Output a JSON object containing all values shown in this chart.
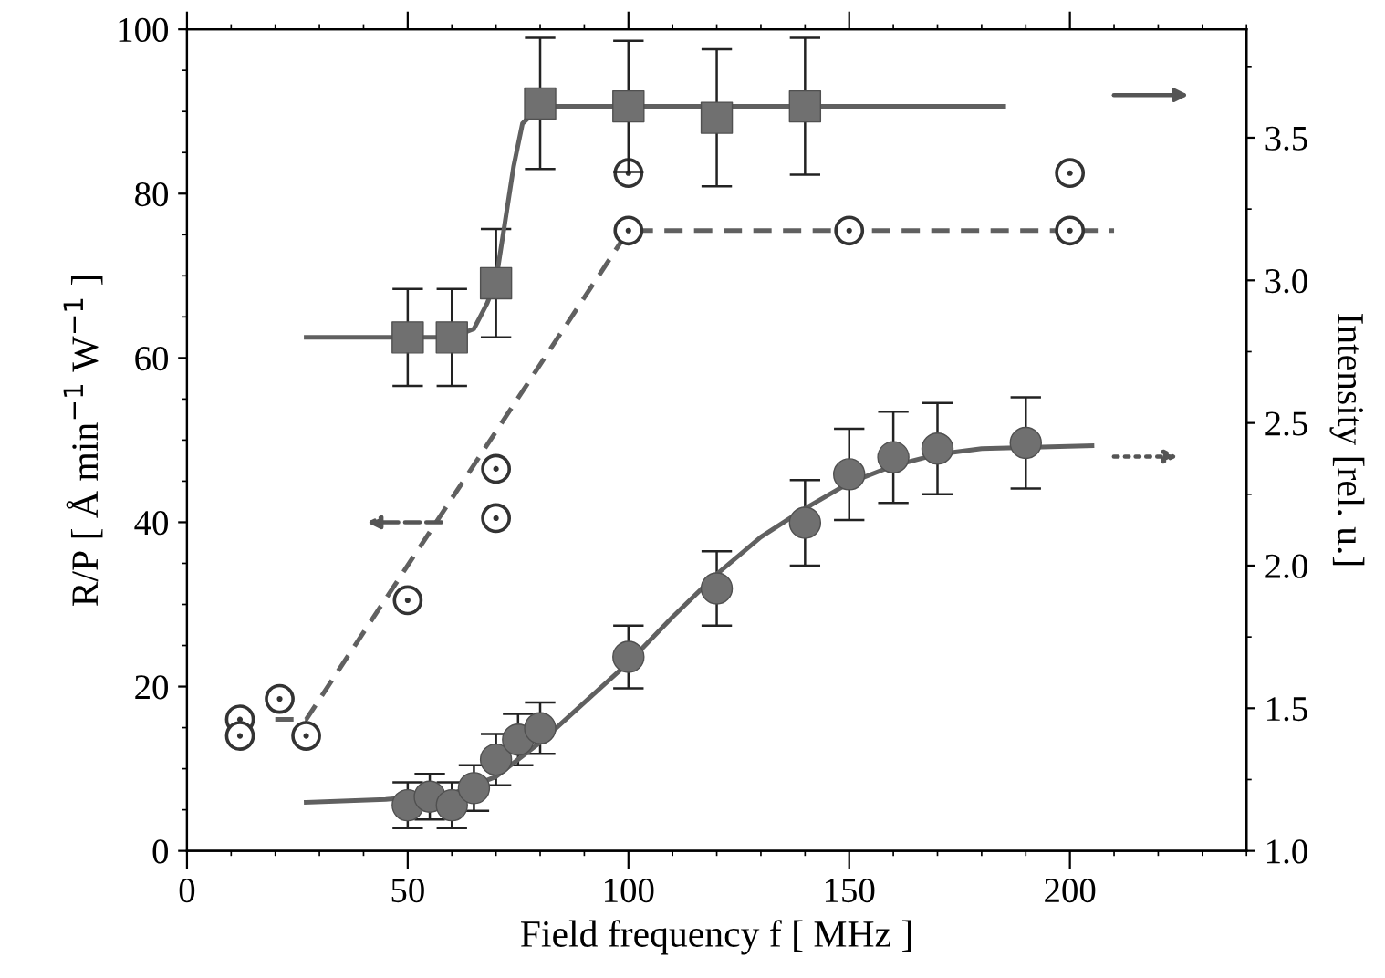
{
  "chart_data": {
    "type": "scatter",
    "xlabel": "Field frequency f [ MHz ]",
    "ylabel": "R/P [ Å min$^{−1}$ W$^{−1}$ ]",
    "y2label": "Intensity [rel. u.]",
    "xlim": [
      0,
      240
    ],
    "xticks": [
      0,
      50,
      100,
      150,
      200
    ],
    "ylim": [
      0,
      100
    ],
    "yticks": [
      0,
      20,
      40,
      60,
      80,
      100
    ],
    "y2lim": [
      1.0,
      3.88
    ],
    "y2ticks": [
      {
        "value": 1.0,
        "label": "1.0"
      },
      {
        "value": 1.5,
        "label": "1.5"
      },
      {
        "value": 2.0,
        "label": "2.0"
      },
      {
        "value": 2.5,
        "label": "2.5"
      },
      {
        "value": 3.0,
        "label": "3.0"
      },
      {
        "value": 3.5,
        "label": "3.5"
      }
    ],
    "grid": false,
    "legend": false,
    "series": [
      {
        "axis": "y2",
        "marker": "square",
        "color": "#707070",
        "x": [
          50,
          60,
          70,
          80,
          100,
          120,
          140
        ],
        "values": [
          2.8,
          2.8,
          2.99,
          3.62,
          3.61,
          3.57,
          3.61
        ],
        "errors": [
          0.17,
          0.17,
          0.19,
          0.23,
          0.23,
          0.24,
          0.24
        ]
      },
      {
        "type": "line",
        "axis": "y2",
        "marker": "none",
        "line_style": "solid",
        "color": "#606060",
        "x": [
          27,
          60,
          65,
          68,
          70,
          72,
          74,
          76,
          80,
          185
        ],
        "values": [
          2.8,
          2.8,
          2.83,
          2.92,
          3.0,
          3.2,
          3.4,
          3.55,
          3.61,
          3.61
        ]
      },
      {
        "marker": "circle",
        "color": "#333333",
        "x": [
          12,
          12,
          21,
          27,
          50,
          70,
          70,
          100,
          100,
          150,
          200,
          200
        ],
        "values": [
          16,
          14,
          18.5,
          14,
          30.5,
          46.5,
          40.5,
          75.5,
          82.5,
          75.5,
          75.5,
          82.5
        ]
      },
      {
        "type": "line",
        "marker": "none",
        "line_style": "dashed",
        "color": "#606060",
        "x": [
          20,
          27,
          100,
          210
        ],
        "values": [
          16,
          16,
          75.5,
          75.5
        ]
      },
      {
        "axis": "y2",
        "marker": "circle",
        "color": "#707070",
        "x": [
          50,
          55,
          60,
          65,
          70,
          75,
          80,
          100,
          120,
          140,
          150,
          160,
          170,
          190
        ],
        "values": [
          1.16,
          1.19,
          1.16,
          1.22,
          1.32,
          1.39,
          1.43,
          1.68,
          1.92,
          2.15,
          2.32,
          2.38,
          2.41,
          2.43
        ],
        "errors": [
          0.08,
          0.08,
          0.08,
          0.08,
          0.09,
          0.09,
          0.09,
          0.11,
          0.13,
          0.15,
          0.16,
          0.16,
          0.16,
          0.16
        ]
      },
      {
        "type": "line",
        "axis": "y2",
        "marker": "none",
        "line_style": "solid",
        "color": "#606060",
        "x": [
          27,
          45,
          60,
          70,
          80,
          90,
          100,
          110,
          120,
          130,
          140,
          150,
          160,
          170,
          180,
          205
        ],
        "values": [
          1.17,
          1.18,
          1.2,
          1.26,
          1.38,
          1.52,
          1.66,
          1.82,
          1.97,
          2.1,
          2.2,
          2.29,
          2.35,
          2.39,
          2.41,
          2.42
        ]
      }
    ]
  }
}
